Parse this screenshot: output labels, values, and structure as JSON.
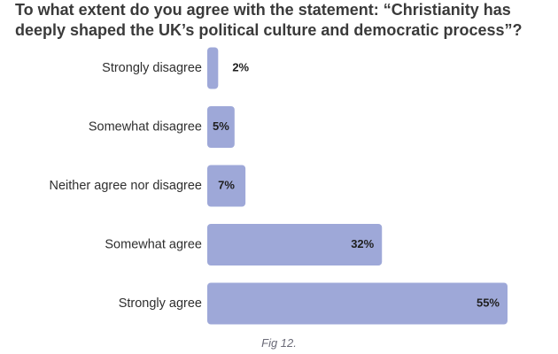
{
  "colors": {
    "bar": "#9ea8d8",
    "text": "#2f2f2f"
  },
  "caption": "Fig 12.",
  "chart_data": {
    "type": "bar",
    "orientation": "horizontal",
    "title": "To what extent do you agree with the statement: “Christianity has deeply shaped the UK’s political culture and democratic process”?",
    "categories": [
      "Strongly disagree",
      "Somewhat disagree",
      "Neither agree nor disagree",
      "Somewhat agree",
      "Strongly agree"
    ],
    "values": [
      2,
      5,
      7,
      32,
      55
    ],
    "value_labels": [
      "2%",
      "5%",
      "7%",
      "32%",
      "55%"
    ],
    "xlim": [
      0,
      55
    ],
    "unit": "%",
    "grid": false,
    "legend": "none"
  }
}
